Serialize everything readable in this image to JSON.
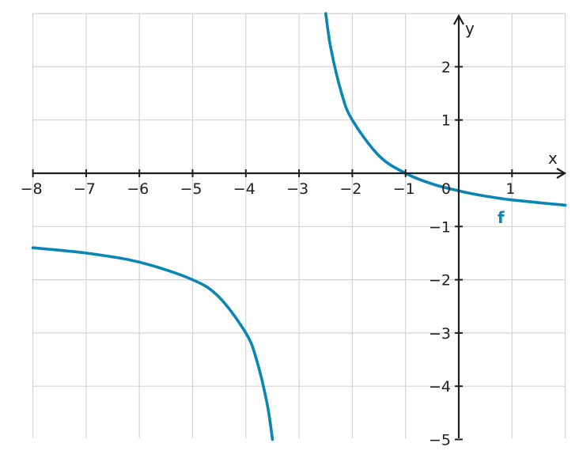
{
  "chart_data": {
    "type": "line",
    "x_axis_label": "x",
    "y_axis_label": "y",
    "xlim": [
      -8,
      2
    ],
    "ylim": [
      -5,
      3
    ],
    "x_ticks": [
      -8,
      -7,
      -6,
      -5,
      -4,
      -3,
      -2,
      -1,
      0,
      1
    ],
    "y_ticks": [
      -5,
      -4,
      -3,
      -2,
      -1,
      1,
      2
    ],
    "tick_labels": {
      "x": [
        "−8",
        "−7",
        "−6",
        "−5",
        "−4",
        "−3",
        "−2",
        "−1",
        "0",
        "1"
      ],
      "y": [
        "−5",
        "−4",
        "−3",
        "−2",
        "−1",
        "1",
        "2"
      ]
    },
    "grid": true,
    "series": [
      {
        "name": "f",
        "color": "#0a86b4",
        "branches": [
          {
            "x": [
              -8,
              -7,
              -6,
              -5,
              -4.5,
              -4,
              -3.8,
              -3.6,
              -3.5
            ],
            "y": [
              -1.4,
              -1.5,
              -1.67,
              -2,
              -2.33,
              -3,
              -3.5,
              -4.33,
              -5
            ]
          },
          {
            "x": [
              -2.5,
              -2.4,
              -2.2,
              -2,
              -1.5,
              -1,
              -0.5,
              0,
              0.5,
              1,
              2
            ],
            "y": [
              3,
              2.33,
              1.5,
              1,
              0.33,
              0,
              -0.2,
              -0.33,
              -0.43,
              -0.5,
              -0.6
            ]
          }
        ]
      }
    ]
  }
}
